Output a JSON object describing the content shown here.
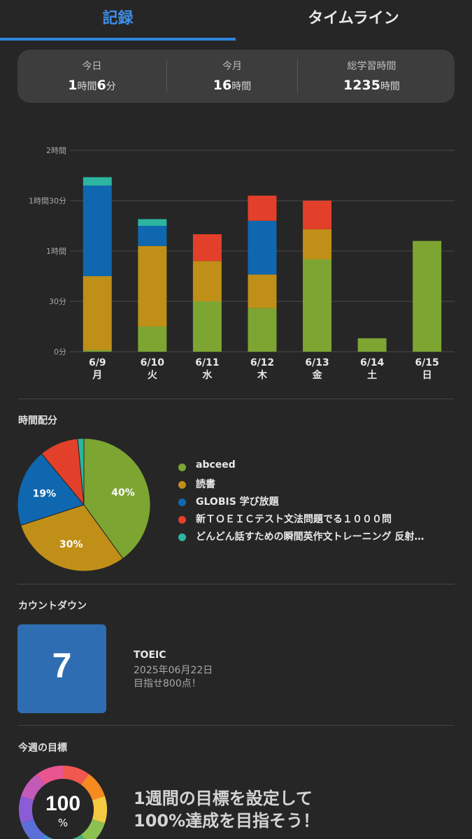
{
  "tabs": [
    {
      "label": "記録",
      "active": true
    },
    {
      "label": "タイムライン",
      "active": false
    }
  ],
  "summary": [
    {
      "label": "今日",
      "value": [
        {
          "num": "1",
          "unit": "時間"
        },
        {
          "num": "6",
          "unit": "分"
        }
      ]
    },
    {
      "label": "今月",
      "value": [
        {
          "num": "16",
          "unit": "時間"
        }
      ]
    },
    {
      "label": "総学習時間",
      "value": [
        {
          "num": "1235",
          "unit": "時間"
        }
      ]
    }
  ],
  "colors": {
    "abceed": "#7da532",
    "reading": "#c08f17",
    "globis": "#0f67b0",
    "toeic_book": "#e2402a",
    "dondon": "#2cb5a0",
    "accent": "#2f86e0"
  },
  "chart_data": {
    "type": "bar",
    "stacked": true,
    "unit": "minutes",
    "categories": [
      "6/9",
      "6/10",
      "6/11",
      "6/12",
      "6/13",
      "6/14",
      "6/15"
    ],
    "weekday_labels": [
      "月",
      "火",
      "水",
      "木",
      "金",
      "土",
      "日"
    ],
    "y_ticks": [
      {
        "value": 0,
        "label": "0分"
      },
      {
        "value": 30,
        "label": "30分"
      },
      {
        "value": 60,
        "label": "1時間"
      },
      {
        "value": 90,
        "label": "1時間30分"
      },
      {
        "value": 120,
        "label": "2時間"
      }
    ],
    "ylim": [
      0,
      120
    ],
    "grid": true,
    "series": [
      {
        "name": "abceed",
        "color": "#7da532",
        "values": [
          1,
          15,
          30,
          26,
          55,
          8,
          66
        ]
      },
      {
        "name": "読書",
        "color": "#c08f17",
        "values": [
          44,
          48,
          24,
          20,
          18,
          0,
          0
        ]
      },
      {
        "name": "GLOBIS 学び放題",
        "color": "#0f67b0",
        "values": [
          54,
          12,
          0,
          32,
          0,
          0,
          0
        ]
      },
      {
        "name": "新ＴＯＥＩＣテスト文法問題でる１０００問",
        "color": "#e2402a",
        "values": [
          0,
          0,
          16,
          15,
          17,
          0,
          0
        ]
      },
      {
        "name": "どんどん話すための瞬間英作文トレーニング 反射…",
        "color": "#2cb5a0",
        "values": [
          5,
          4,
          0,
          0,
          0,
          0,
          0
        ]
      }
    ]
  },
  "distribution": {
    "title": "時間配分",
    "slices": [
      {
        "name": "abceed",
        "color": "#7da532",
        "percent": 40,
        "label": "40%"
      },
      {
        "name": "読書",
        "color": "#c08f17",
        "percent": 30,
        "label": "30%"
      },
      {
        "name": "GLOBIS 学び放題",
        "color": "#0f67b0",
        "percent": 19,
        "label": "19%"
      },
      {
        "name": "新ＴＯＥＩＣテスト文法問題でる１０００問",
        "color": "#e2402a",
        "percent": 9.5,
        "label": ""
      },
      {
        "name": "どんどん話すための瞬間英作文トレーニング 反射…",
        "color": "#2cb5a0",
        "percent": 1.5,
        "label": ""
      }
    ]
  },
  "countdown": {
    "title": "カウントダウン",
    "days": "7",
    "name": "TOEIC",
    "date": "2025年06月22日",
    "memo": "目指せ800点！"
  },
  "weekly_goal": {
    "title": "今週の目標",
    "percent_value": "100",
    "percent_unit": "%",
    "message_line1": "1週間の目標を設定して",
    "message_line2": "100%達成を目指そう！",
    "ring_colors": [
      "#f0584f",
      "#f58a1f",
      "#f5c842",
      "#8cc152",
      "#3fb47c",
      "#3a8fd6",
      "#5b6fd6",
      "#8a5cd6",
      "#c45ab8",
      "#e8558f"
    ]
  }
}
